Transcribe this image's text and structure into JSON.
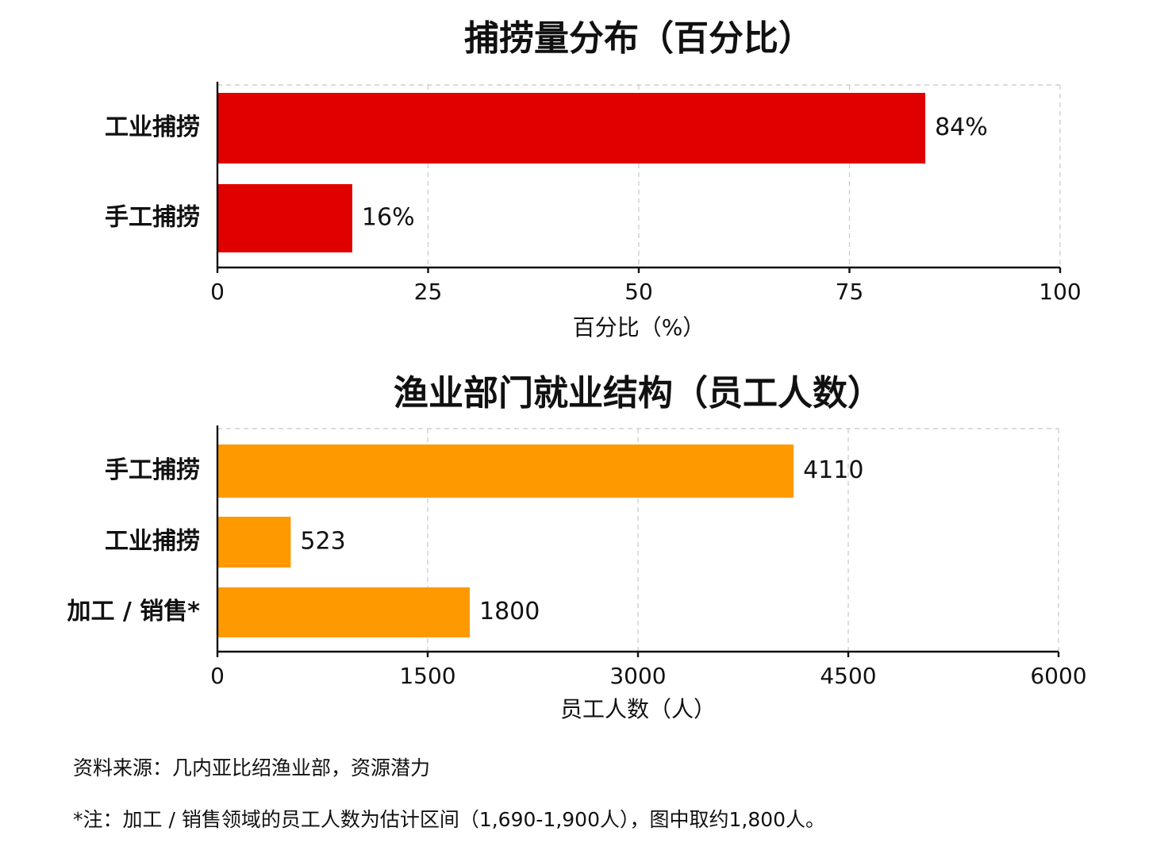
{
  "chart_data": [
    {
      "type": "bar",
      "orientation": "horizontal",
      "title": "捕捞量分布（百分比）",
      "xlabel": "百分比（%）",
      "categories": [
        "工业捕捞",
        "手工捕捞"
      ],
      "values": [
        84,
        16
      ],
      "value_labels": [
        "84%",
        "16%"
      ],
      "xlim": [
        0,
        100
      ],
      "xticks": [
        0,
        25,
        50,
        75,
        100
      ],
      "color": "#e00000",
      "grid": true
    },
    {
      "type": "bar",
      "orientation": "horizontal",
      "title": "渔业部门就业结构（员工人数）",
      "xlabel": "员工人数（人）",
      "categories": [
        "手工捕捞",
        "工业捕捞",
        "加工 / 销售*"
      ],
      "values": [
        4110,
        523,
        1800
      ],
      "value_labels": [
        "4110",
        "523",
        "1800"
      ],
      "xlim": [
        0,
        6000
      ],
      "xticks": [
        0,
        1500,
        3000,
        4500,
        6000
      ],
      "color": "#ff9900",
      "grid": true
    }
  ],
  "footer": {
    "source": "资料来源：几内亚比绍渔业部，资源潜力",
    "note": "*注：加工 / 销售领域的员工人数为估计区间（1,690-1,900人），图中取约1,800人。"
  }
}
